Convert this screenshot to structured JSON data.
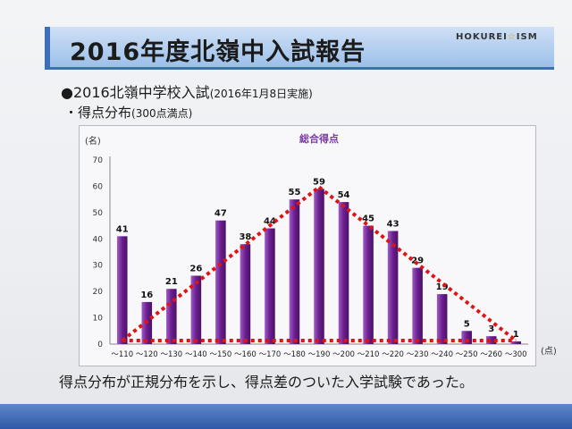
{
  "slide": {
    "title": "2016年度北嶺中入試報告",
    "brand": "HOKUREI",
    "brand_star": "☆",
    "brand_tail": "ISM",
    "heading1_main": "●2016北嶺中学校入試",
    "heading1_sub": "(2016年1月8日実施)",
    "heading2_main": "・得点分布",
    "heading2_sub": "(300点満点)",
    "footer": "得点分布が正規分布を示し、得点差のついた入学試験であった。"
  },
  "chart_data": {
    "type": "bar",
    "title": "総合得点",
    "ylabel": "(名)",
    "xunit": "(点)",
    "ylim": [
      0,
      70
    ],
    "yticks": [
      0,
      10,
      20,
      30,
      40,
      50,
      60,
      70
    ],
    "grid": false,
    "colors": {
      "bar": "#6a1f8f",
      "bar_light": "#a05bc6",
      "trend": "#e01414",
      "title": "#7a3aa0"
    },
    "categories": [
      "～110",
      "～120",
      "～130",
      "～140",
      "～150",
      "～160",
      "～170",
      "～180",
      "～190",
      "～200",
      "～210",
      "～220",
      "～230",
      "～240",
      "～250",
      "～260",
      "～300"
    ],
    "values": [
      41,
      16,
      21,
      26,
      47,
      38,
      44,
      55,
      59,
      54,
      45,
      43,
      29,
      19,
      5,
      3,
      1
    ],
    "annotations": {
      "trend_triangle": "red dotted triangle from first to last bar peaking at ～190"
    }
  }
}
